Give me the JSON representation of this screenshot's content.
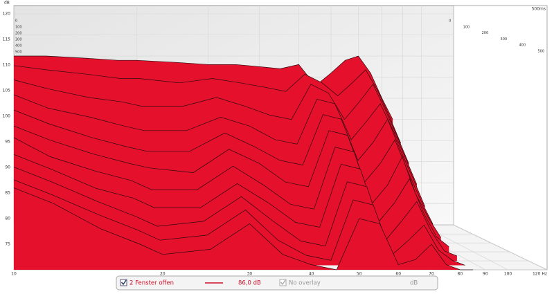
{
  "chart_data": {
    "type": "waterfall",
    "y_label": "dB",
    "time_range_label": "500ms",
    "x": [
      10,
      12,
      15,
      18,
      20,
      25,
      30,
      35,
      40,
      45,
      50,
      55,
      60,
      65,
      70,
      75,
      80,
      85
    ],
    "xlim": [
      10,
      120
    ],
    "xticks": [
      10,
      20,
      30,
      40,
      50,
      60,
      70,
      80,
      90,
      100,
      {
        "value": 120,
        "label": "120 Hz"
      }
    ],
    "log_x": true,
    "ylim": [
      70,
      120
    ],
    "yticks": [
      75,
      80,
      85,
      90,
      95,
      100,
      105,
      110,
      115,
      120
    ],
    "zlim": [
      0,
      500
    ],
    "zticks": [
      0,
      100,
      200,
      300,
      400,
      500
    ],
    "color": "#e5102c",
    "grid": true,
    "series": [
      {
        "t": 0,
        "values": [
          110,
          110,
          109.5,
          109,
          109,
          108.5,
          108,
          108,
          107.5,
          107,
          108,
          103,
          106,
          109,
          110,
          106,
          100,
          95
        ]
      },
      {
        "t": 50,
        "values": [
          108,
          107,
          106,
          105,
          105,
          104,
          105,
          104,
          103,
          102,
          106,
          104,
          101,
          104,
          107,
          102,
          96,
          90
        ]
      },
      {
        "t": 100,
        "values": [
          105,
          103,
          101,
          100,
          99,
          99,
          101,
          99,
          97,
          96,
          104,
          102,
          96,
          100,
          104,
          98,
          92,
          86
        ]
      },
      {
        "t": 150,
        "values": [
          102,
          99,
          97,
          95,
          94,
          94,
          97,
          95,
          92,
          91,
          101,
          100,
          92,
          96,
          100,
          94,
          88,
          82
        ]
      },
      {
        "t": 200,
        "values": [
          99,
          96,
          93,
          91,
          90,
          90,
          94,
          91,
          88,
          87,
          98,
          97,
          88,
          92,
          97,
          90,
          84,
          78
        ]
      },
      {
        "t": 250,
        "values": [
          96,
          93,
          90,
          88,
          87,
          86,
          91,
          88,
          84,
          83,
          95,
          94,
          84,
          88,
          93,
          86,
          80,
          75
        ]
      },
      {
        "t": 300,
        "values": [
          94,
          90,
          87,
          85,
          83,
          83,
          88,
          84,
          80,
          79,
          92,
          91,
          80,
          84,
          90,
          82,
          77,
          73
        ]
      },
      {
        "t": 350,
        "values": [
          91,
          88,
          84,
          82,
          80,
          80,
          85,
          81,
          77,
          76,
          89,
          88,
          77,
          81,
          86,
          79,
          74,
          72
        ]
      },
      {
        "t": 400,
        "values": [
          89,
          86,
          82,
          79,
          77,
          78,
          83,
          78,
          74,
          73,
          86,
          85,
          74,
          78,
          82,
          76,
          72,
          71
        ]
      },
      {
        "t": 450,
        "values": [
          87,
          84,
          80,
          77,
          75,
          76,
          81,
          75,
          72,
          71,
          83,
          82,
          72,
          75,
          78,
          73,
          71,
          70
        ]
      },
      {
        "t": 500,
        "values": [
          86,
          83,
          78,
          75,
          73,
          74,
          79,
          73,
          71,
          70,
          80,
          79,
          71,
          72,
          75,
          71,
          70,
          70
        ]
      }
    ]
  },
  "legend_bar": {
    "windows_label": "2 Fenster offen",
    "level_label": "86,0 dB",
    "overlay_label": "No overlay",
    "unit_label": "dB"
  }
}
